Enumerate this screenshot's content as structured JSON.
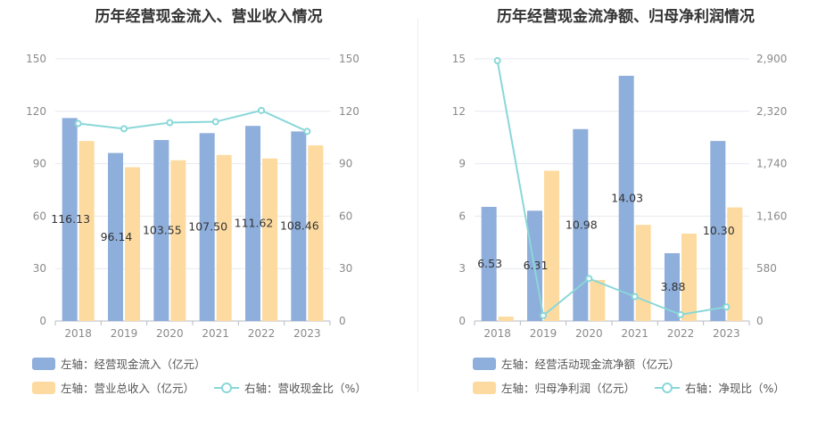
{
  "colors": {
    "primary": "#8eaedb",
    "secondary": "#fddba0",
    "line": "#8ad7d9",
    "grid": "#e6e9f0",
    "axis": "#8a8a8a",
    "text": "#333333"
  },
  "chart_data": [
    {
      "type": "bar",
      "title": "历年经营现金流入、营业收入情况",
      "categories": [
        "2018",
        "2019",
        "2020",
        "2021",
        "2022",
        "2023"
      ],
      "series": [
        {
          "name": "左轴：经营现金流入（亿元）",
          "axis": "left",
          "values": [
            116.13,
            96.14,
            103.55,
            107.5,
            111.62,
            108.46
          ],
          "labels": [
            "116.13",
            "96.14",
            "103.55",
            "107.50",
            "111.62",
            "108.46"
          ]
        },
        {
          "name": "左轴：营业总收入（亿元）",
          "axis": "left",
          "values": [
            103,
            88,
            92,
            95,
            93,
            100.5
          ]
        },
        {
          "name": "右轴：营收现金比（%）",
          "axis": "right",
          "type": "line",
          "values": [
            113,
            110,
            113.5,
            114,
            120.5,
            108.5
          ]
        }
      ],
      "left_axis": {
        "ylim": [
          0,
          150
        ],
        "ticks": [
          "0",
          "30",
          "60",
          "90",
          "120",
          "150"
        ]
      },
      "right_axis": {
        "ylim": [
          0,
          150
        ],
        "ticks": [
          "0",
          "30",
          "60",
          "90",
          "120",
          "150"
        ]
      },
      "grid": true,
      "legend_position": "bottom-left"
    },
    {
      "type": "bar",
      "title": "历年经营现金流净额、归母净利润情况",
      "categories": [
        "2018",
        "2019",
        "2020",
        "2021",
        "2022",
        "2023"
      ],
      "series": [
        {
          "name": "左轴：经营活动现金流净额（亿元）",
          "axis": "left",
          "values": [
            6.53,
            6.31,
            10.98,
            14.03,
            3.88,
            10.3
          ],
          "labels": [
            "6.53",
            "6.31",
            "10.98",
            "14.03",
            "3.88",
            "10.30"
          ]
        },
        {
          "name": "左轴：归母净利润（亿元）",
          "axis": "left",
          "values": [
            0.25,
            8.6,
            2.35,
            5.5,
            5.0,
            6.5
          ]
        },
        {
          "name": "右轴：净现比（%）",
          "axis": "right",
          "type": "line",
          "values": [
            2880,
            60,
            470,
            270,
            70,
            155
          ]
        }
      ],
      "left_axis": {
        "ylim": [
          0,
          15
        ],
        "ticks": [
          "0",
          "3",
          "6",
          "9",
          "12",
          "15"
        ]
      },
      "right_axis": {
        "ylim": [
          0,
          2900
        ],
        "ticks": [
          "0",
          "580",
          "1,160",
          "1,740",
          "2,320",
          "2,900"
        ]
      },
      "grid": true,
      "legend_position": "bottom-left"
    }
  ]
}
